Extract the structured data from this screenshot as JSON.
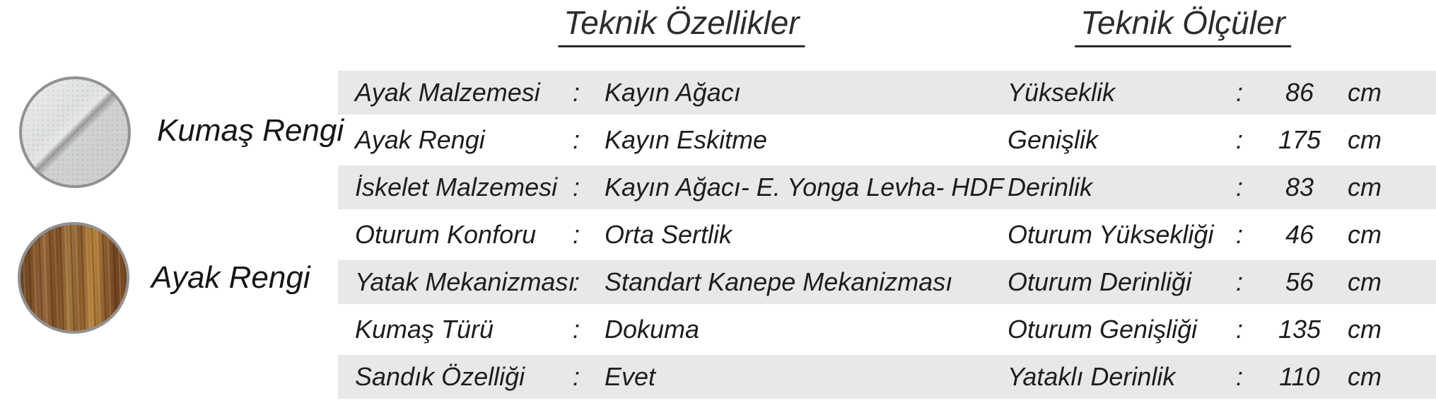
{
  "swatches": {
    "fabric": {
      "label": "Kumaş Rengi",
      "swatch_kind": "fabric-texture-light-gray"
    },
    "leg": {
      "label": "Ayak Rengi",
      "swatch_kind": "wood-grain-walnut"
    }
  },
  "sections": {
    "specs_title": "Teknik Özellikler",
    "dims_title": "Teknik Ölçüler"
  },
  "separator": ":",
  "rows": [
    {
      "spec_label": "Ayak Malzemesi",
      "spec_value": "Kayın Ağacı",
      "dim_label": "Yükseklik",
      "dim_value": "86",
      "unit": "cm"
    },
    {
      "spec_label": "Ayak Rengi",
      "spec_value": "Kayın Eskitme",
      "dim_label": "Genişlik",
      "dim_value": "175",
      "unit": "cm"
    },
    {
      "spec_label": "İskelet Malzemesi",
      "spec_value": "Kayın Ağacı- E. Yonga Levha- HDF",
      "dim_label": "Derinlik",
      "dim_value": "83",
      "unit": "cm"
    },
    {
      "spec_label": "Oturum Konforu",
      "spec_value": "Orta Sertlik",
      "dim_label": "Oturum Yüksekliği",
      "dim_value": "46",
      "unit": "cm"
    },
    {
      "spec_label": "Yatak Mekanizması",
      "spec_value": "Standart Kanepe Mekanizması",
      "dim_label": "Oturum Derinliği",
      "dim_value": "56",
      "unit": "cm"
    },
    {
      "spec_label": "Kumaş Türü",
      "spec_value": "Dokuma",
      "dim_label": "Oturum Genişliği",
      "dim_value": "135",
      "unit": "cm"
    },
    {
      "spec_label": "Sandık Özelliği",
      "spec_value": "Evet",
      "dim_label": "Yataklı Derinlik",
      "dim_value": "110",
      "unit": "cm"
    }
  ],
  "colors": {
    "stripe": "#e8e8e8",
    "text": "#1d1d1d",
    "title": "#2c2c2a",
    "swatch_border": "#919191",
    "fabric_base": "#dadcdd",
    "wood_base": "#8a5c33"
  }
}
